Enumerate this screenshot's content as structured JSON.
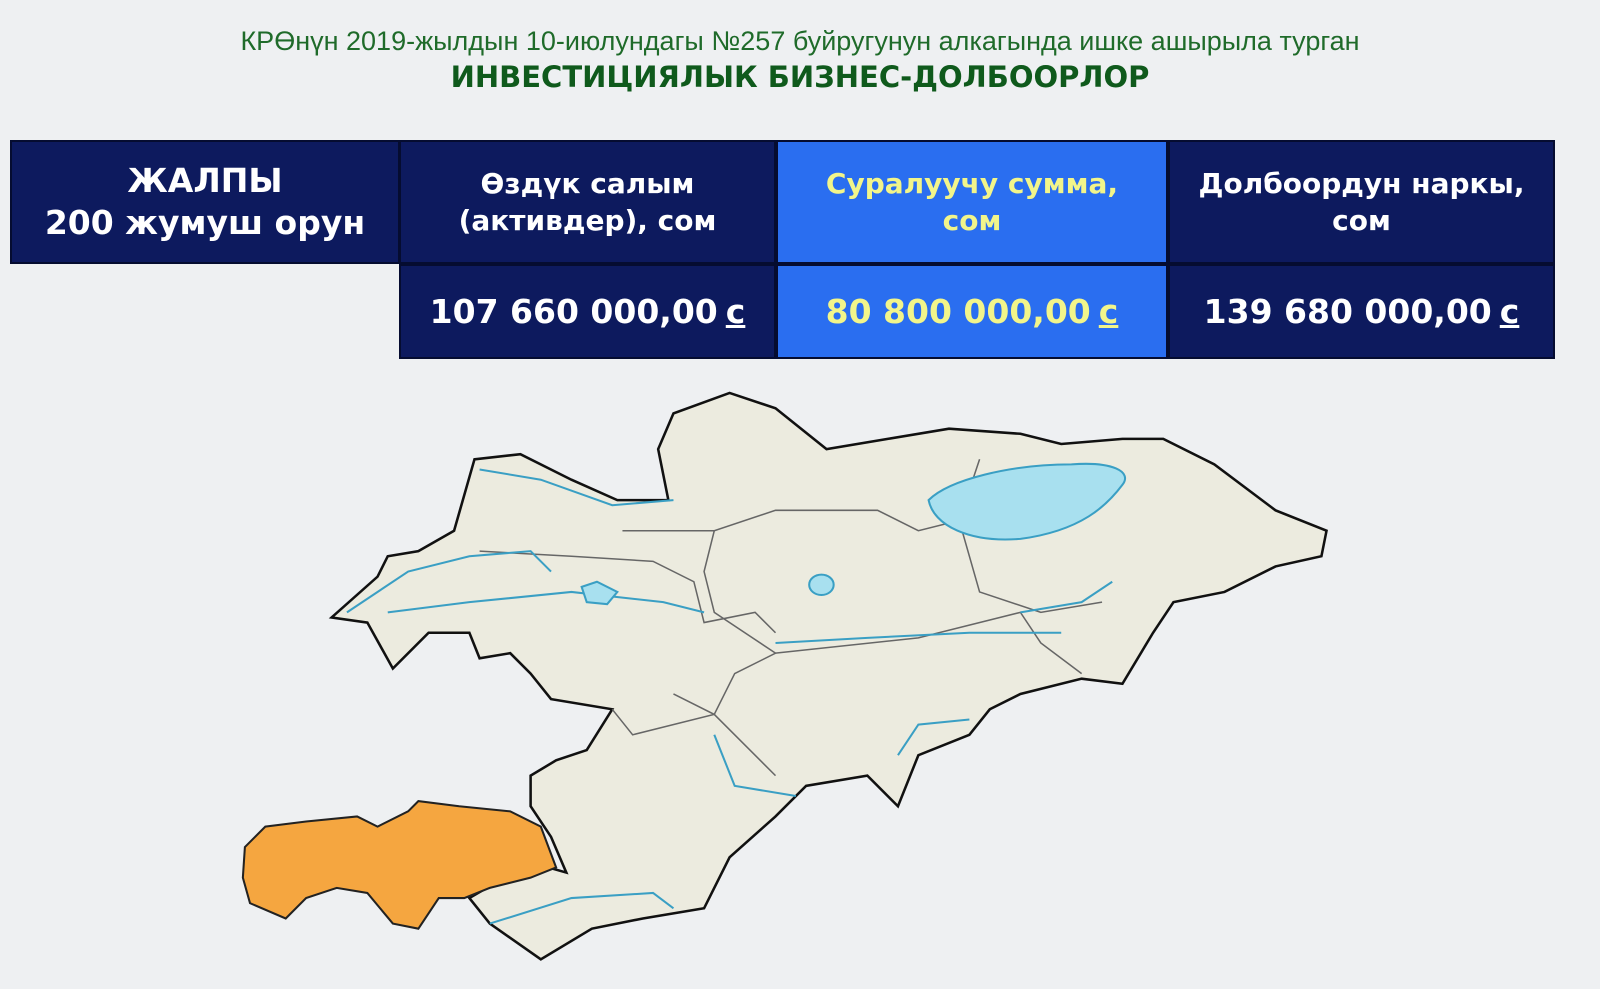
{
  "header": {
    "subtitle": "КРӨнүн 2019-жылдын 10-июлундагы №257 буйругунун алкагында ишке ашырыла турган",
    "title": "ИНВЕСТИЦИЯЛЫК БИЗНЕС-ДОЛБООРЛОР"
  },
  "summary": {
    "line1": "ЖАЛПЫ",
    "line2": "200 жумуш орун"
  },
  "columns": [
    {
      "line1": "Өздүк салым",
      "line2": "(активдер), сом",
      "value": "107 660 000,00",
      "currency": "с"
    },
    {
      "line1": "Суралуучу сумма,",
      "line2": "сом",
      "value": "80 800 000,00",
      "currency": "с"
    },
    {
      "line1": "Долбоордун наркы,",
      "line2": "сом",
      "value": "139 680 000,00",
      "currency": "с"
    }
  ],
  "map": {
    "highlighted_region_color": "#f5a640",
    "land_color": "#ecebdf",
    "water_color": "#a8e0ef",
    "river_color": "#3a9fc4"
  }
}
